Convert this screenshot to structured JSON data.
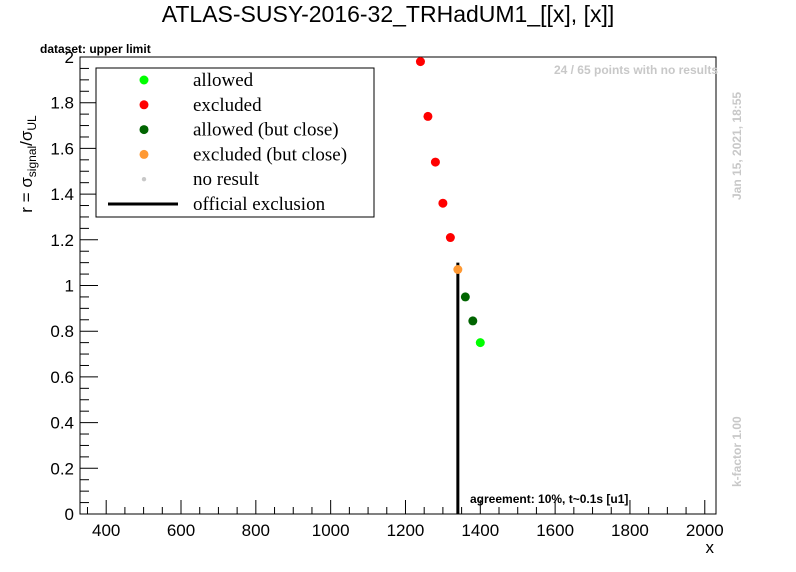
{
  "chart_data": {
    "type": "scatter",
    "title": "ATLAS-SUSY-2016-32_TRHadUM1_[[x], [x]]",
    "dataset_label": "dataset: upper limit",
    "xlabel": "x",
    "ylabel": "r = σ_signal/σ_UL",
    "ylabel_parts": {
      "prefix": "r = σ",
      "sub1": "signal",
      "slash": "/σ",
      "sub2": "UL"
    },
    "xlim": [
      330,
      2030
    ],
    "ylim": [
      0,
      2
    ],
    "x_ticks": [
      400,
      600,
      800,
      1000,
      1200,
      1400,
      1600,
      1800,
      2000
    ],
    "x_tick_labels": [
      "400",
      "600",
      "800",
      "1000",
      "1200",
      "1400",
      "1600",
      "1800",
      "2000"
    ],
    "y_ticks": [
      0,
      0.2,
      0.4,
      0.6,
      0.8,
      1,
      1.2,
      1.4,
      1.6,
      1.8,
      2
    ],
    "y_tick_labels": [
      "0",
      "0.2",
      "0.4",
      "0.6",
      "0.8",
      "1",
      "1.2",
      "1.4",
      "1.6",
      "1.8",
      "2"
    ],
    "grid": false,
    "legend_placement": "top-left",
    "legend": [
      {
        "label": "allowed",
        "kind": "marker",
        "color": "#00ff00"
      },
      {
        "label": "excluded",
        "kind": "marker",
        "color": "#ff0000"
      },
      {
        "label": "allowed (but close)",
        "kind": "marker",
        "color": "#006400"
      },
      {
        "label": "excluded (but close)",
        "kind": "marker",
        "color": "#ff9933"
      },
      {
        "label": "no result",
        "kind": "small-marker",
        "color": "#c8c8c8"
      },
      {
        "label": "official exclusion",
        "kind": "line",
        "color": "#000000"
      }
    ],
    "series": [
      {
        "name": "excluded",
        "color": "#ff0000",
        "points": [
          {
            "x": 1240,
            "y": 1.98
          },
          {
            "x": 1260,
            "y": 1.74
          },
          {
            "x": 1280,
            "y": 1.54
          },
          {
            "x": 1300,
            "y": 1.36
          },
          {
            "x": 1320,
            "y": 1.21
          }
        ]
      },
      {
        "name": "excluded (but close)",
        "color": "#ff9933",
        "points": [
          {
            "x": 1340,
            "y": 1.07
          }
        ]
      },
      {
        "name": "allowed (but close)",
        "color": "#006400",
        "points": [
          {
            "x": 1360,
            "y": 0.95
          },
          {
            "x": 1380,
            "y": 0.845
          }
        ]
      },
      {
        "name": "allowed",
        "color": "#00ff00",
        "points": [
          {
            "x": 1400,
            "y": 0.75
          }
        ]
      }
    ],
    "official_exclusion": {
      "x": 1340,
      "y_from": 0,
      "y_to": 1.1,
      "color": "#000000"
    },
    "annotations": {
      "no_results": "24 / 65 points with no results",
      "timestamp": "Jan 15, 2021, 18:55",
      "kfactor": "k-factor 1.00",
      "agreement": "agreement: 10%, t~0.1s [u1]"
    }
  }
}
